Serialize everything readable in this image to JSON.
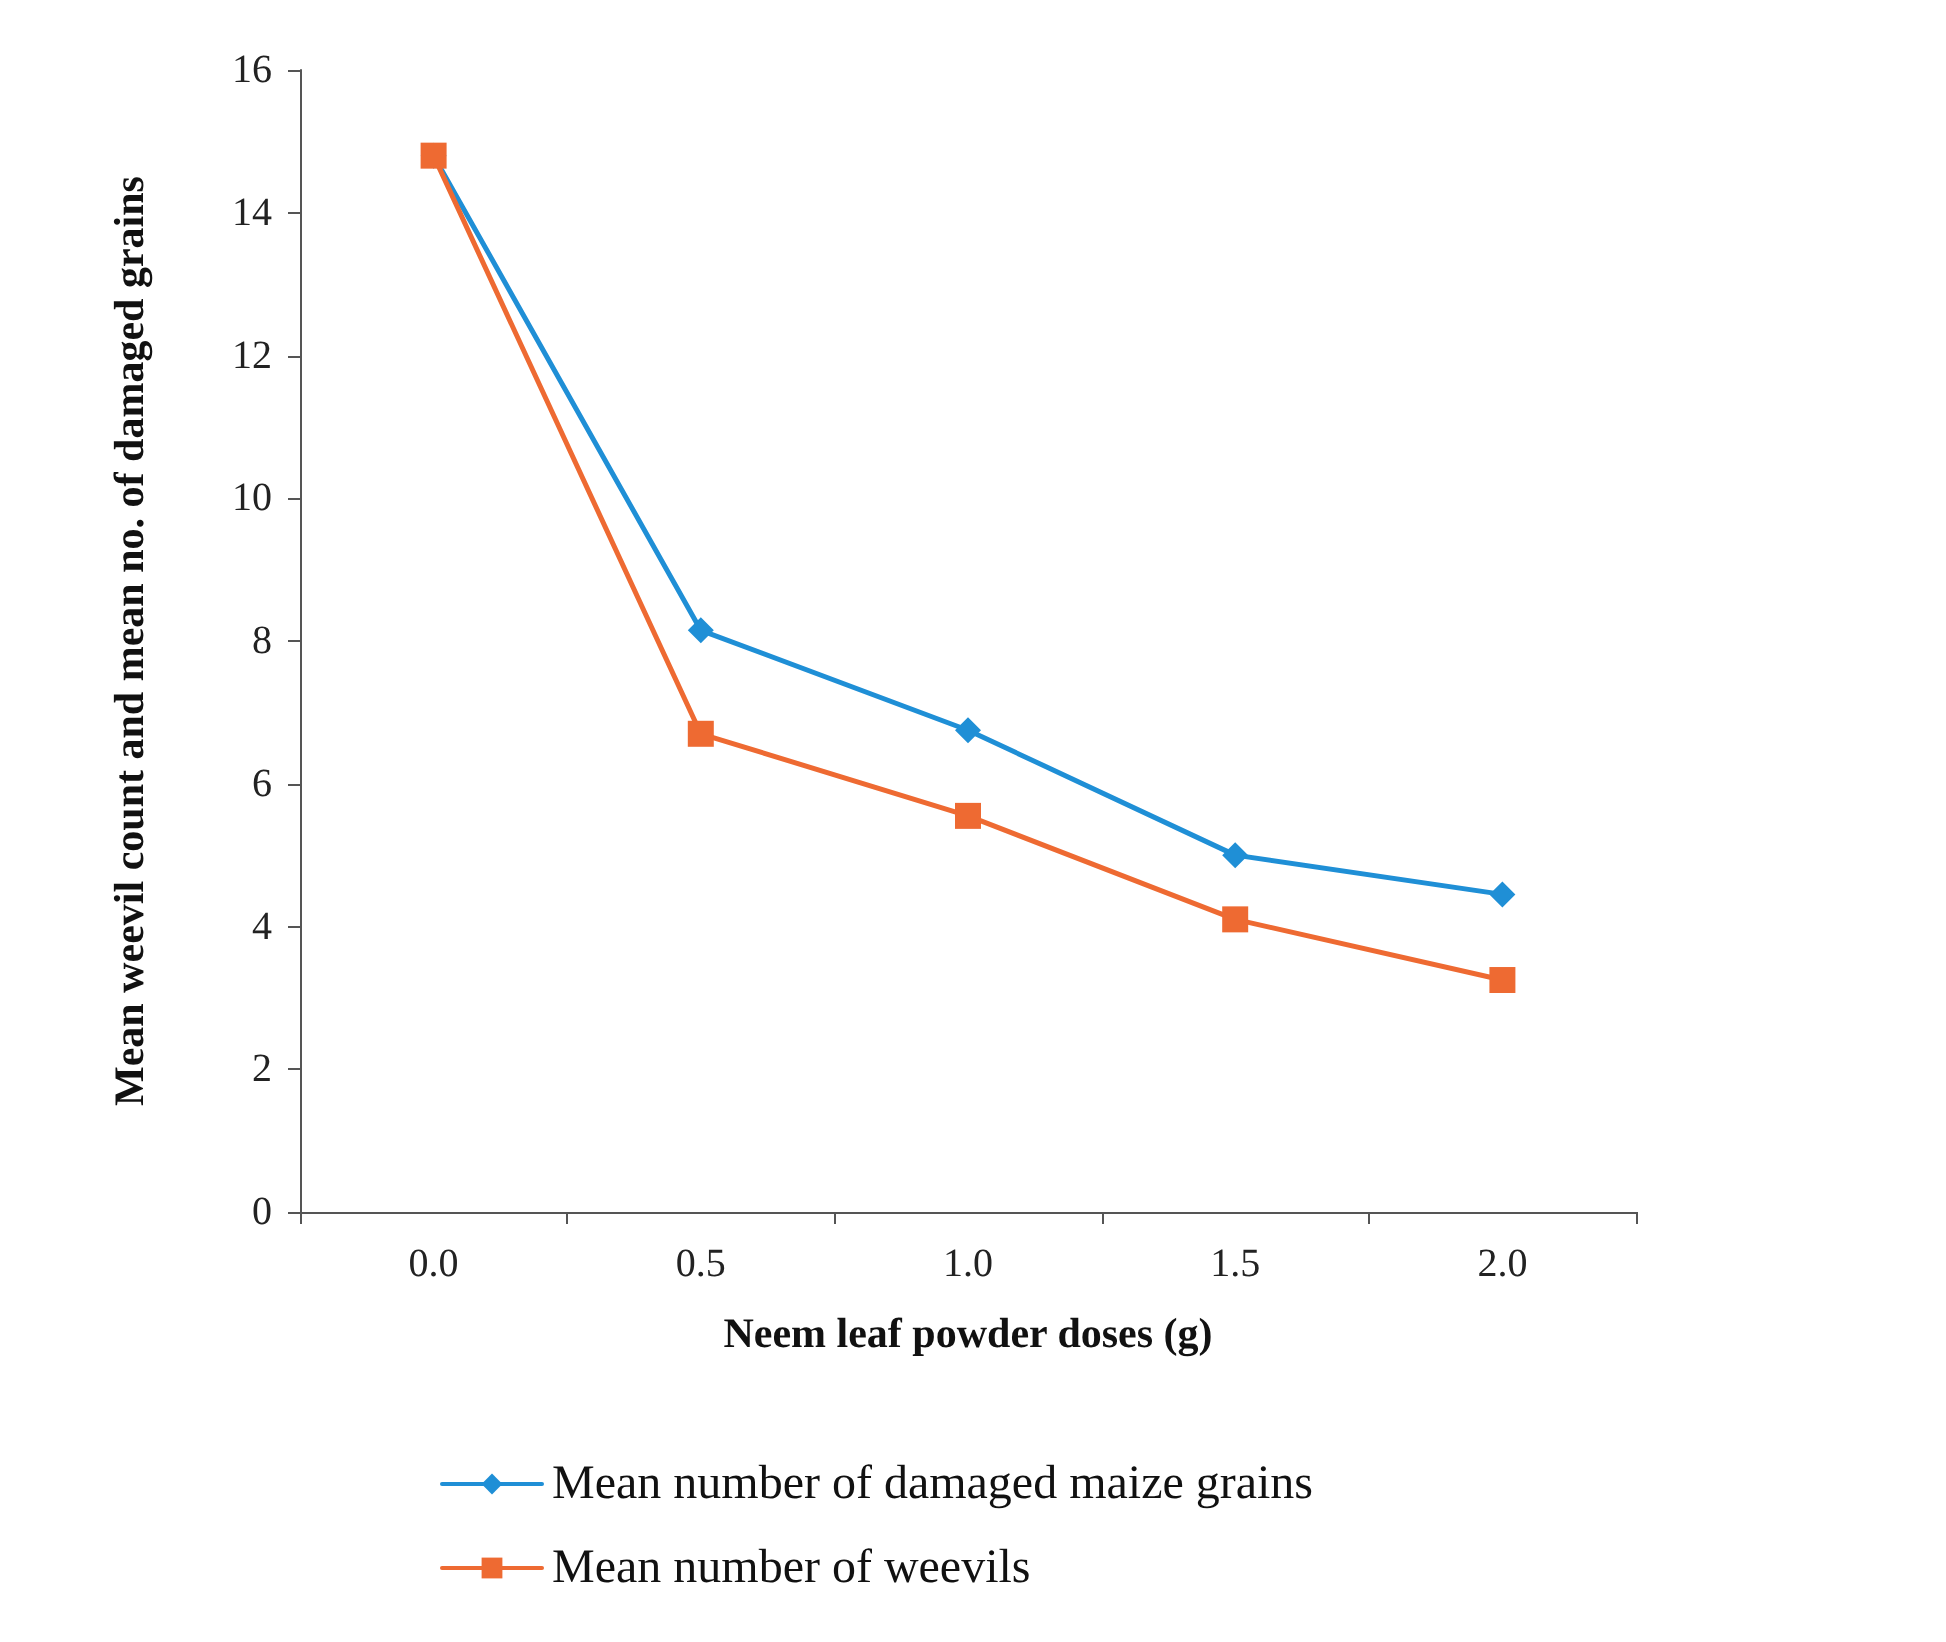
{
  "chart_data": {
    "type": "line",
    "xlabel": "Neem leaf powder doses (g)",
    "ylabel": "Mean weevil count and mean no. of damaged grains",
    "categories": [
      "0.0",
      "0.5",
      "1.0",
      "1.5",
      "2.0"
    ],
    "series": [
      {
        "name": "Mean number of damaged maize grains",
        "color": "#1f8fd6",
        "marker": "diamond",
        "values": [
          14.8,
          8.15,
          6.75,
          5.0,
          4.45
        ]
      },
      {
        "name": "Mean number of weevils",
        "color": "#ee6a32",
        "marker": "square",
        "values": [
          14.8,
          6.7,
          5.55,
          4.1,
          3.25
        ]
      }
    ],
    "ylim": [
      0,
      16
    ],
    "yticks": [
      0,
      2,
      4,
      6,
      8,
      10,
      12,
      14,
      16
    ],
    "grid": false,
    "legend": "bottom",
    "line_style": "solid"
  }
}
